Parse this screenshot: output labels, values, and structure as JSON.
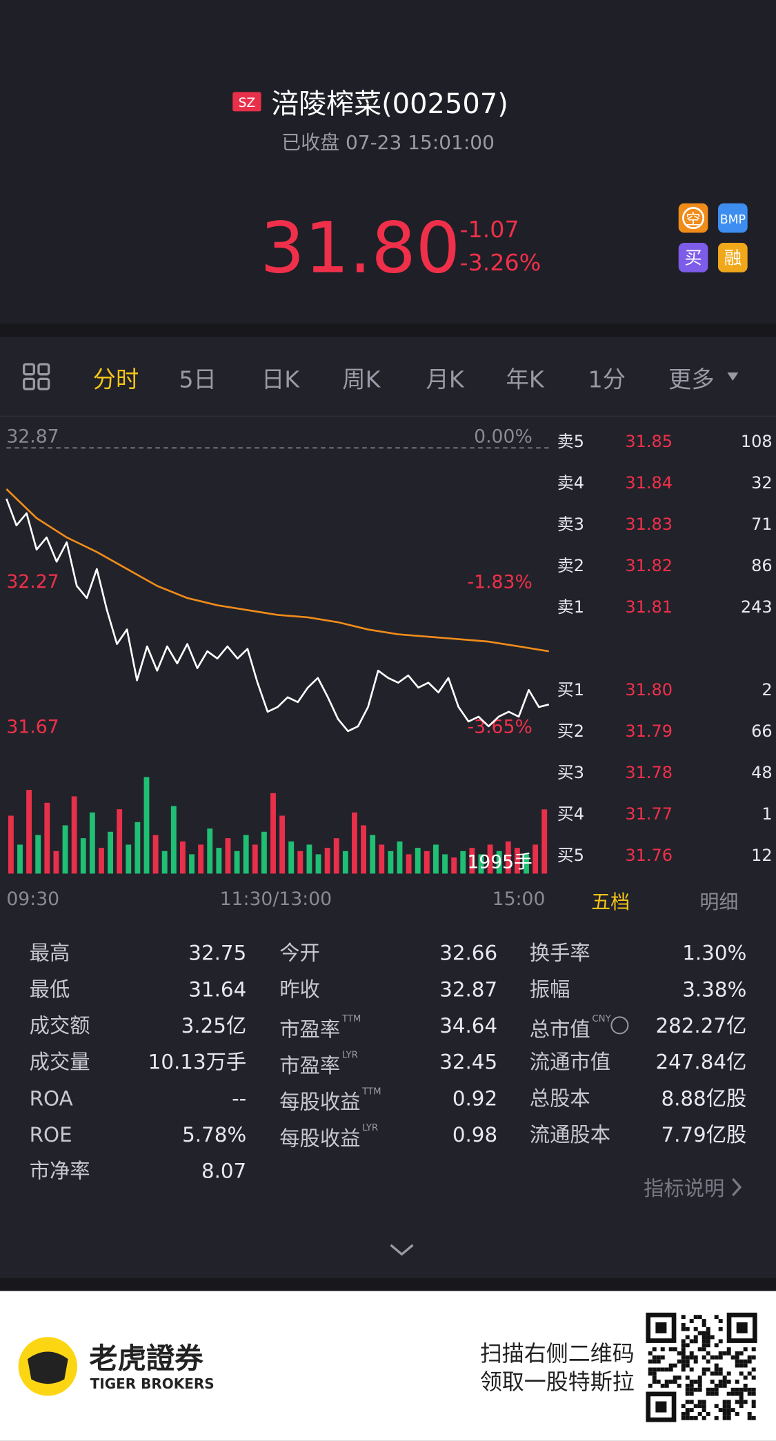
{
  "header": {
    "market": "SZ",
    "name": "涪陵榨菜(002507)",
    "status": "已收盘 07-23 15:01:00"
  },
  "quote": {
    "price": "31.80",
    "change": "-1.07",
    "change_pct": "-3.26%"
  },
  "badges": [
    "空",
    "BMP",
    "买",
    "融"
  ],
  "tabs": [
    "分时",
    "5日",
    "日K",
    "周K",
    "月K",
    "年K",
    "1分",
    "更多"
  ],
  "chart_data": {
    "type": "line",
    "ylim": [
      31.67,
      32.87
    ],
    "yticks": [
      32.87,
      32.27,
      31.67
    ],
    "y2lim": [
      -3.65,
      0
    ],
    "y2ticks": [
      {
        "value": 0,
        "label": "0.00%"
      },
      {
        "value": -1.83,
        "label": "-1.83%"
      },
      {
        "value": -3.65,
        "label": "-3.65%"
      }
    ],
    "x_labels": [
      "09:30",
      "11:30/13:00",
      "15:00"
    ],
    "series": [
      {
        "color": "#ffffff",
        "values": [
          32.66,
          32.55,
          32.6,
          32.45,
          32.5,
          32.4,
          32.48,
          32.3,
          32.25,
          32.37,
          32.2,
          32.06,
          32.12,
          31.91,
          32.05,
          31.95,
          32.05,
          31.98,
          32.06,
          31.96,
          32.03,
          32.0,
          32.05,
          32.0,
          32.04,
          31.9,
          31.78,
          31.8,
          31.84,
          31.82,
          31.88,
          31.92,
          31.84,
          31.75,
          31.7,
          31.72,
          31.8,
          31.95,
          31.92,
          31.9,
          31.93,
          31.88,
          31.9,
          31.86,
          31.92,
          31.8,
          31.74,
          31.76,
          31.72,
          31.76,
          31.78,
          31.76,
          31.87,
          31.8,
          31.81
        ]
      },
      {
        "color": "#f08c1a",
        "values": [
          32.7,
          32.58,
          32.5,
          32.44,
          32.37,
          32.3,
          32.25,
          32.22,
          32.2,
          32.18,
          32.17,
          32.15,
          32.12,
          32.1,
          32.09,
          32.08,
          32.07,
          32.05,
          32.03
        ]
      }
    ],
    "volume": {
      "label": "1995手",
      "values": [
        1800,
        900,
        2600,
        1200,
        2200,
        700,
        1500,
        2400,
        1100,
        1900,
        800,
        1300,
        2000,
        900,
        1600,
        3000,
        1200,
        700,
        2100,
        1000,
        600,
        900,
        1400,
        800,
        1100,
        700,
        1200,
        900,
        1300,
        2500,
        1800,
        1000,
        700,
        900,
        600,
        800,
        1100,
        700,
        1900,
        1500,
        1200,
        900,
        700,
        1000,
        600,
        800,
        700,
        900,
        600,
        500,
        700,
        800,
        600,
        900,
        700,
        1000,
        800,
        600,
        900,
        1995
      ],
      "colors": [
        "#e8304a",
        "#1fbf74",
        "#e8304a",
        "#1fbf74",
        "#e8304a",
        "#e8304a",
        "#1fbf74",
        "#e8304a",
        "#1fbf74",
        "#1fbf74",
        "#e8304a",
        "#1fbf74",
        "#e8304a",
        "#1fbf74",
        "#1fbf74",
        "#1fbf74",
        "#e8304a",
        "#1fbf74",
        "#1fbf74",
        "#e8304a",
        "#1fbf74",
        "#e8304a",
        "#1fbf74",
        "#1fbf74",
        "#e8304a",
        "#1fbf74",
        "#1fbf74",
        "#e8304a",
        "#1fbf74",
        "#e8304a",
        "#e8304a",
        "#1fbf74",
        "#e8304a",
        "#1fbf74",
        "#1fbf74",
        "#e8304a",
        "#e8304a",
        "#1fbf74",
        "#e8304a",
        "#e8304a",
        "#1fbf74",
        "#e8304a",
        "#1fbf74",
        "#1fbf74",
        "#e8304a",
        "#1fbf74",
        "#e8304a",
        "#1fbf74",
        "#1fbf74",
        "#e8304a",
        "#1fbf74",
        "#e8304a",
        "#1fbf74",
        "#e8304a",
        "#1fbf74",
        "#e8304a",
        "#e8304a",
        "#1fbf74",
        "#e8304a",
        "#e8304a"
      ]
    }
  },
  "orderbook": {
    "asks": [
      {
        "label": "卖5",
        "price": "31.85",
        "volume": "108"
      },
      {
        "label": "卖4",
        "price": "31.84",
        "volume": "32"
      },
      {
        "label": "卖3",
        "price": "31.83",
        "volume": "71"
      },
      {
        "label": "卖2",
        "price": "31.82",
        "volume": "86"
      },
      {
        "label": "卖1",
        "price": "31.81",
        "volume": "243"
      }
    ],
    "bids": [
      {
        "label": "买1",
        "price": "31.80",
        "volume": "2"
      },
      {
        "label": "买2",
        "price": "31.79",
        "volume": "66"
      },
      {
        "label": "买3",
        "price": "31.78",
        "volume": "48"
      },
      {
        "label": "买4",
        "price": "31.77",
        "volume": "1"
      },
      {
        "label": "买5",
        "price": "31.76",
        "volume": "12"
      }
    ],
    "tabs": [
      "五档",
      "明细"
    ]
  },
  "stats": {
    "columns": [
      {
        "items": [
          {
            "label": "最高",
            "value": "32.75"
          },
          {
            "label": "最低",
            "value": "31.64"
          },
          {
            "label": "成交额",
            "value": "3.25亿"
          },
          {
            "label": "成交量",
            "value": "10.13万手"
          },
          {
            "label": "ROA",
            "value": "--"
          },
          {
            "label": "ROE",
            "value": "5.78%"
          },
          {
            "label": "市净率",
            "value": "8.07"
          }
        ]
      },
      {
        "items": [
          {
            "label": "今开",
            "value": "32.66"
          },
          {
            "label": "昨收",
            "value": "32.87"
          },
          {
            "label": "市盈率",
            "sup": "TTM",
            "value": "34.64"
          },
          {
            "label": "市盈率",
            "sup": "LYR",
            "value": "32.45"
          },
          {
            "label": "每股收益",
            "sup": "TTM",
            "value": "0.92"
          },
          {
            "label": "每股收益",
            "sup": "LYR",
            "value": "0.98"
          }
        ]
      },
      {
        "items": [
          {
            "label": "换手率",
            "value": "1.30%"
          },
          {
            "label": "振幅",
            "value": "3.38%"
          },
          {
            "label": "总市值",
            "sup": "CNY",
            "value": "282.27亿"
          },
          {
            "label": "流通市值",
            "value": "247.84亿"
          },
          {
            "label": "总股本",
            "value": "8.88亿股"
          },
          {
            "label": "流通股本",
            "value": "7.79亿股"
          }
        ]
      }
    ],
    "link": "指标说明"
  },
  "footer": {
    "brand": "老虎證券",
    "brand_en": "TIGER BROKERS",
    "line1": "扫描右侧二维码",
    "line2": "领取一股特斯拉"
  }
}
